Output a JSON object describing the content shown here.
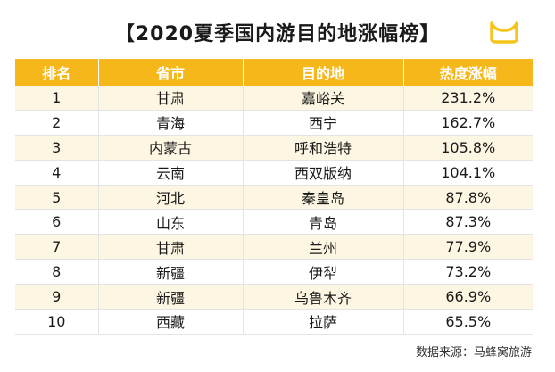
{
  "title": "【2020夏季国内游目的地涨幅榜】",
  "logo": {
    "icon": "mafengwo-logo-icon",
    "color": "#f5c519"
  },
  "colors": {
    "header_bg": "#f5b71a",
    "row_alt_bg": "#fdf6e3",
    "border": "#e4e4e4"
  },
  "table": {
    "headers": [
      "排名",
      "省市",
      "目的地",
      "热度涨幅"
    ],
    "rows": [
      [
        "1",
        "甘肃",
        "嘉峪关",
        "231.2%"
      ],
      [
        "2",
        "青海",
        "西宁",
        "162.7%"
      ],
      [
        "3",
        "内蒙古",
        "呼和浩特",
        "105.8%"
      ],
      [
        "4",
        "云南",
        "西双版纳",
        "104.1%"
      ],
      [
        "5",
        "河北",
        "秦皇岛",
        "87.8%"
      ],
      [
        "6",
        "山东",
        "青岛",
        "87.3%"
      ],
      [
        "7",
        "甘肃",
        "兰州",
        "77.9%"
      ],
      [
        "8",
        "新疆",
        "伊犁",
        "73.2%"
      ],
      [
        "9",
        "新疆",
        "乌鲁木齐",
        "66.9%"
      ],
      [
        "10",
        "西藏",
        "拉萨",
        "65.5%"
      ]
    ]
  },
  "source": "数据来源：马蜂窝旅游"
}
